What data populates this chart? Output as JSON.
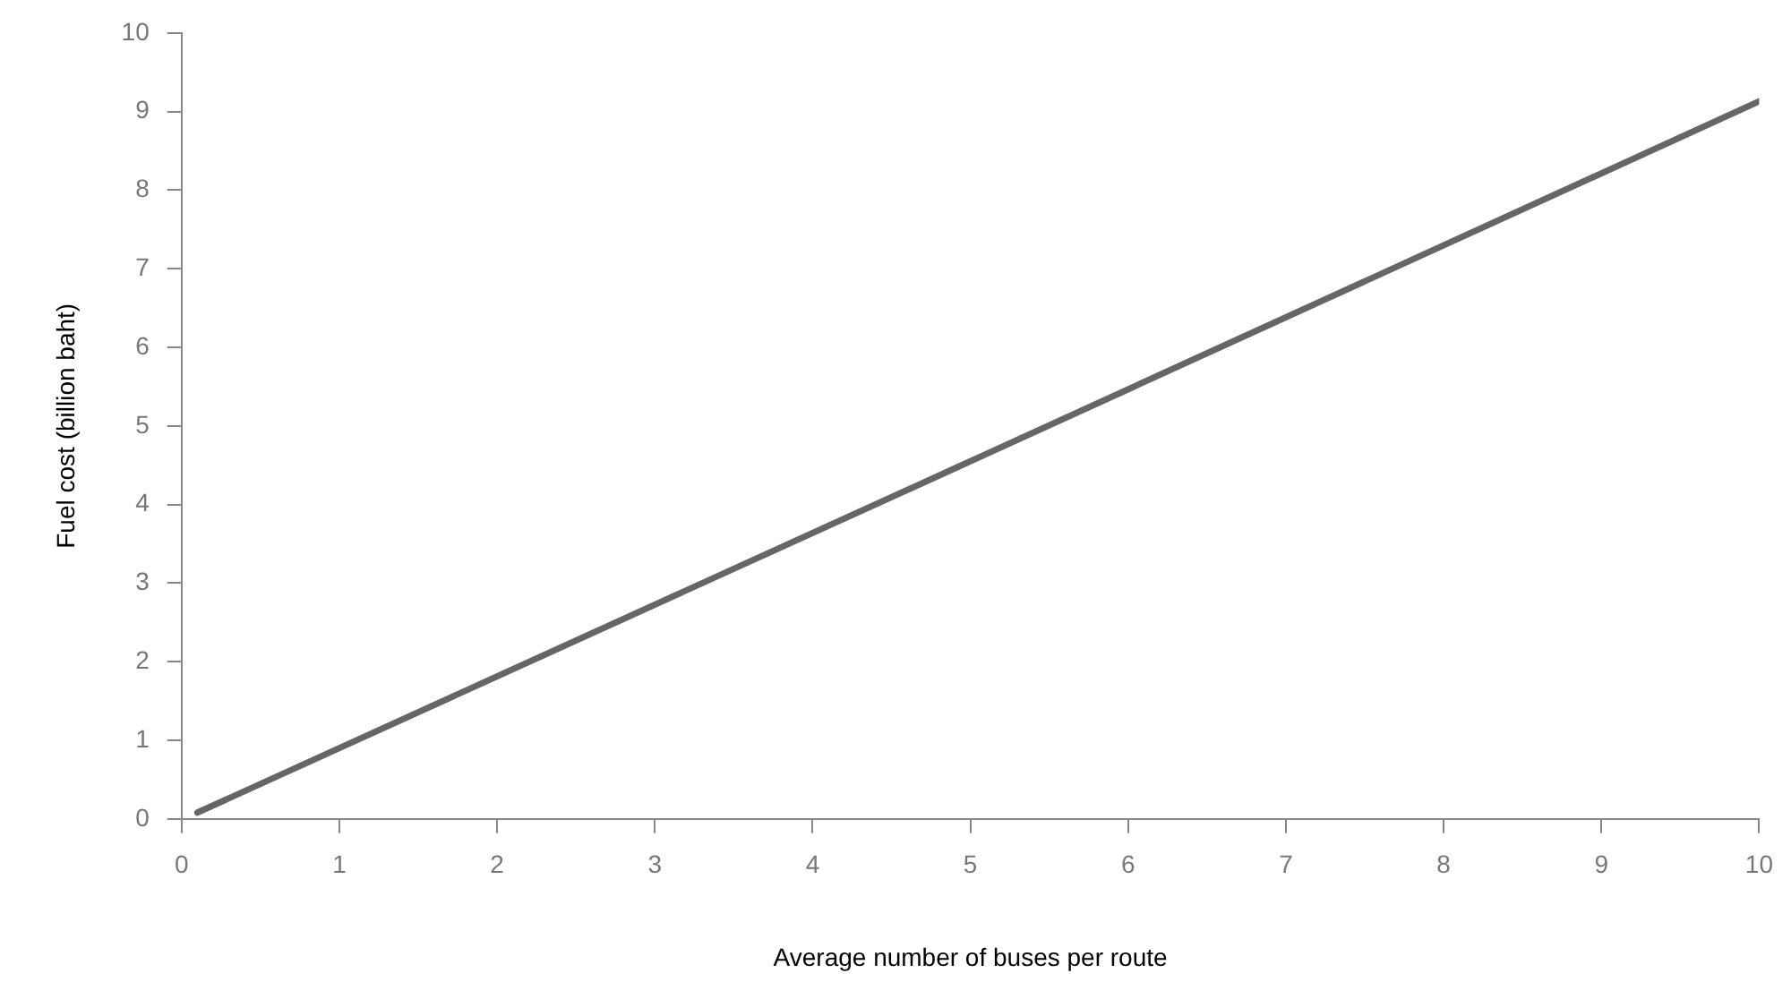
{
  "chart_data": {
    "type": "line",
    "xlabel": "Average number of buses per route",
    "ylabel": "Fuel cost (billion baht)",
    "x": [
      0.1,
      5,
      10
    ],
    "series": [
      {
        "color": "#666666",
        "values": [
          0.08,
          4.55,
          9.13
        ]
      }
    ],
    "xlim": [
      0,
      10
    ],
    "xticks": [
      0,
      1,
      2,
      3,
      4,
      5,
      6,
      7,
      8,
      9,
      10
    ],
    "ylim": [
      0,
      10
    ],
    "yticks": [
      0,
      1,
      2,
      3,
      4,
      5,
      6,
      7,
      8,
      9,
      10
    ],
    "grid": false,
    "legend": false,
    "marker": "none",
    "line_style": "solid"
  }
}
